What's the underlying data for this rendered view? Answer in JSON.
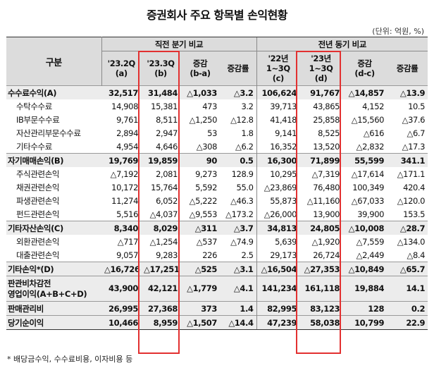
{
  "title": "증권회사 주요 항목별 손익현황",
  "unit": "(단위: 억원, %)",
  "header": {
    "gubun": "구분",
    "group1": "직전 분기 비교",
    "group2": "전년 동기 비교",
    "cols": [
      [
        "'23.2Q",
        "(a)"
      ],
      [
        "'23.3Q",
        "(b)"
      ],
      [
        "증감",
        "(b-a)"
      ],
      [
        "증감률"
      ],
      [
        "'22년",
        "1~3Q",
        "(c)"
      ],
      [
        "'23년",
        "1~3Q",
        "(d)"
      ],
      [
        "증감",
        "(d-c)"
      ],
      [
        "증감률"
      ]
    ]
  },
  "rows": [
    {
      "type": "main",
      "label": [
        "수수료수익(A)"
      ],
      "v": [
        "32,517",
        "31,484",
        "△1,033",
        "△3.2",
        "106,624",
        "91,767",
        "△14,857",
        "△13.9"
      ]
    },
    {
      "type": "sub",
      "label": [
        "수탁수수료"
      ],
      "v": [
        "14,908",
        "15,381",
        "473",
        "3.2",
        "39,713",
        "43,865",
        "4,152",
        "10.5"
      ]
    },
    {
      "type": "sub",
      "label": [
        "IB부문수수료"
      ],
      "v": [
        "9,761",
        "8,511",
        "△1,250",
        "△12.8",
        "41,418",
        "25,858",
        "△15,560",
        "△37.6"
      ]
    },
    {
      "type": "sub",
      "label": [
        "자산관리부문수수료"
      ],
      "v": [
        "2,894",
        "2,947",
        "53",
        "1.8",
        "9,141",
        "8,525",
        "△616",
        "△6.7"
      ]
    },
    {
      "type": "sub",
      "label": [
        "기타수수료"
      ],
      "v": [
        "4,954",
        "4,646",
        "△308",
        "△6.2",
        "16,352",
        "13,520",
        "△2,832",
        "△17.3"
      ]
    },
    {
      "type": "main",
      "label": [
        "자기매매손익(B)"
      ],
      "v": [
        "19,769",
        "19,859",
        "90",
        "0.5",
        "16,300",
        "71,899",
        "55,599",
        "341.1"
      ]
    },
    {
      "type": "sub",
      "label": [
        "주식관련손익"
      ],
      "v": [
        "△7,192",
        "2,081",
        "9,273",
        "128.9",
        "10,295",
        "△7,319",
        "△17,614",
        "△171.1"
      ]
    },
    {
      "type": "sub",
      "label": [
        "채권관련손익"
      ],
      "v": [
        "10,172",
        "15,764",
        "5,592",
        "55.0",
        "△23,869",
        "76,480",
        "100,349",
        "420.4"
      ]
    },
    {
      "type": "sub",
      "label": [
        "파생관련손익"
      ],
      "v": [
        "11,274",
        "6,052",
        "△5,222",
        "△46.3",
        "55,873",
        "△11,160",
        "△67,033",
        "△120.0"
      ]
    },
    {
      "type": "sub",
      "label": [
        "펀드관련손익"
      ],
      "v": [
        "5,516",
        "△4,037",
        "△9,553",
        "△173.2",
        "△26,000",
        "13,900",
        "39,900",
        "153.5"
      ]
    },
    {
      "type": "main",
      "label": [
        "기타자산손익(C)"
      ],
      "v": [
        "8,340",
        "8,029",
        "△311",
        "△3.7",
        "34,813",
        "24,805",
        "△10,008",
        "△28.7"
      ]
    },
    {
      "type": "sub",
      "label": [
        "외환관련손익"
      ],
      "v": [
        "△717",
        "△1,254",
        "△537",
        "△74.9",
        "5,639",
        "△1,920",
        "△7,559",
        "△134.0"
      ]
    },
    {
      "type": "sub",
      "label": [
        "대출관련손익"
      ],
      "v": [
        "9,057",
        "9,283",
        "226",
        "2.5",
        "29,173",
        "26,724",
        "△2,449",
        "△8.4"
      ]
    },
    {
      "type": "main",
      "label": [
        "기타손익*(D)"
      ],
      "v": [
        "△16,726",
        "△17,251",
        "△525",
        "△3.1",
        "△16,504",
        "△27,353",
        "△10,849",
        "△65.7"
      ]
    },
    {
      "type": "main2",
      "label": [
        "판관비차감전",
        "영업이익(A+B+C+D)"
      ],
      "v": [
        "43,900",
        "42,121",
        "△1,779",
        "△4.1",
        "141,234",
        "161,118",
        "19,884",
        "14.1"
      ]
    },
    {
      "type": "main",
      "label": [
        "판매관리비"
      ],
      "v": [
        "26,995",
        "27,368",
        "373",
        "1.4",
        "82,995",
        "83,123",
        "128",
        "0.2"
      ]
    },
    {
      "type": "main",
      "label": [
        "당기순이익"
      ],
      "v": [
        "10,466",
        "8,959",
        "△1,507",
        "△14.4",
        "47,239",
        "58,038",
        "10,799",
        "22.9"
      ]
    }
  ],
  "footnote": "* 배당금수익, 수수료비용, 이자비용 등",
  "colors": {
    "highlight_box": "#e23030",
    "header_bg": "#dcdcdc",
    "main_row_bg": "#ececec"
  }
}
